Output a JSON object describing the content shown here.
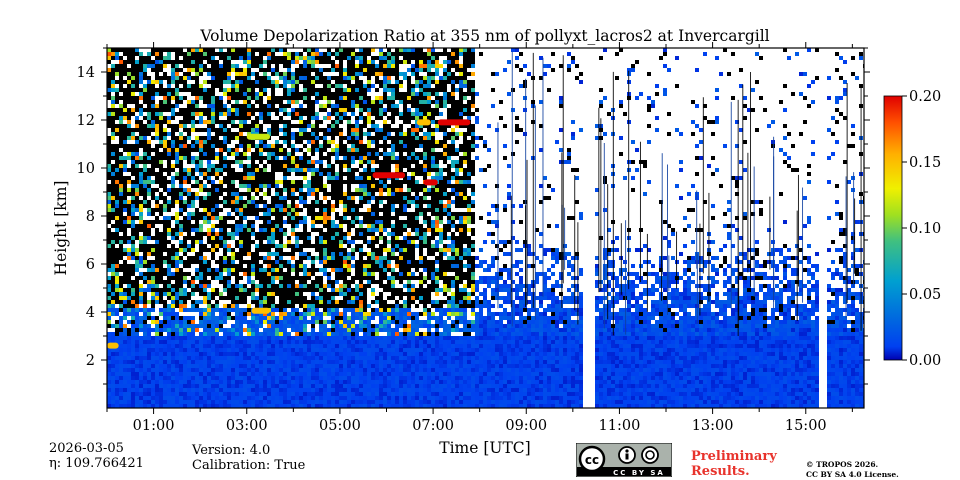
{
  "chart_data": {
    "type": "heatmap",
    "title": "Volume Depolarization Ratio at 355 nm of pollyxt_lacros2 at Invercargill",
    "xlabel": "Time [UTC]",
    "ylabel": "Height [km]",
    "x_range_hours": [
      0,
      16.25
    ],
    "ylim": [
      0,
      15
    ],
    "x_tick_labels": [
      "01:00",
      "03:00",
      "05:00",
      "07:00",
      "09:00",
      "11:00",
      "13:00",
      "15:00"
    ],
    "x_tick_values": [
      1,
      3,
      5,
      7,
      9,
      11,
      13,
      15
    ],
    "x_minor_tick_values": [
      0,
      2,
      4,
      6,
      8,
      10,
      12,
      14,
      16
    ],
    "y_tick_labels": [
      "2",
      "4",
      "6",
      "8",
      "10",
      "12",
      "14"
    ],
    "y_tick_values": [
      2,
      4,
      6,
      8,
      10,
      12,
      14
    ],
    "colorbar": {
      "range": [
        0.0,
        0.2
      ],
      "tick_labels": [
        "0.00",
        "0.05",
        "0.10",
        "0.15",
        "0.20"
      ],
      "tick_values": [
        0.0,
        0.05,
        0.1,
        0.15,
        0.2
      ],
      "colormap": "jet"
    },
    "data_gaps_hours": [
      [
        10.25,
        10.45
      ],
      [
        15.28,
        15.47
      ]
    ],
    "features": {
      "noisy_region_end_hours": 7.9,
      "aerosol_layer_top_km": 3.0,
      "clouds": [
        {
          "t_start": 5.7,
          "t_end": 6.4,
          "height_km": 9.7,
          "depol": 0.2
        },
        {
          "t_start": 6.8,
          "t_end": 7.1,
          "height_km": 9.4,
          "depol": 0.2
        },
        {
          "t_start": 7.1,
          "t_end": 7.8,
          "height_km": 11.9,
          "depol": 0.2
        },
        {
          "t_start": 6.65,
          "t_end": 6.95,
          "height_km": 11.9,
          "depol": 0.15
        },
        {
          "t_start": 3.0,
          "t_end": 3.5,
          "height_km": 11.3,
          "depol": 0.12
        },
        {
          "t_start": 3.1,
          "t_end": 3.5,
          "height_km": 4.05,
          "depol": 0.15
        },
        {
          "t_start": 0.0,
          "t_end": 0.25,
          "height_km": 2.6,
          "depol": 0.15
        }
      ]
    }
  },
  "meta": {
    "date": "2026-03-05",
    "eta_label": "η: 109.766421",
    "version": "Version: 4.0",
    "calibration": "Calibration: True"
  },
  "license": {
    "preliminary_line1": "Preliminary",
    "preliminary_line2": "Results.",
    "copyright_line1": "© TROPOS 2026.",
    "copyright_line2": "CC BY SA 4.0 License.",
    "cc_badge_text": "CC BY SA"
  }
}
